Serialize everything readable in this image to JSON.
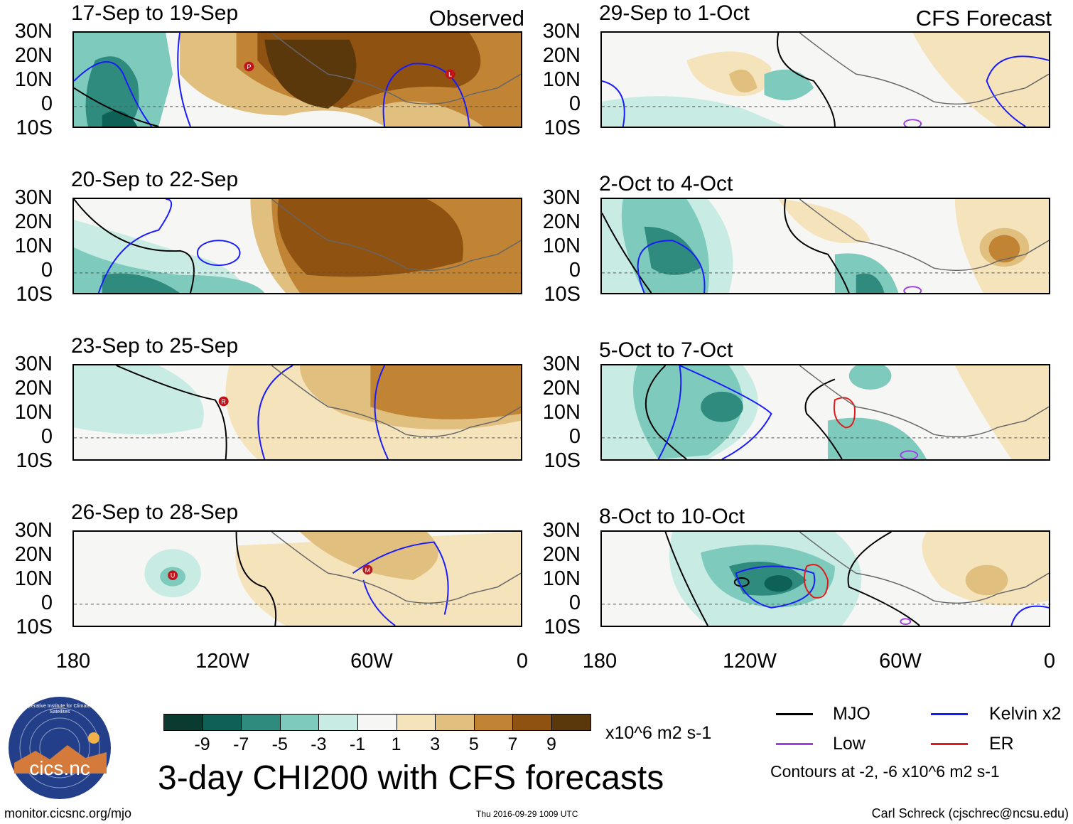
{
  "figure_title": "3-day CHI200 with CFS forecasts",
  "units_label": "x10^6 m2 s-1",
  "source_url": "monitor.cicsnc.org/mjo",
  "timestamp": "Thu 2016-09-29 1009 UTC",
  "author": "Carl Schreck (cjschrec@ncsu.edu)",
  "logo": {
    "ring_text": "Cooperative Institute for Climate and Satellites",
    "name": "cics.nc"
  },
  "observed_label": "Observed",
  "forecast_label": "CFS Forecast",
  "lat_labels": [
    "30N",
    "20N",
    "10N",
    "0",
    "10S"
  ],
  "lon_labels": [
    "180",
    "120W",
    "60W",
    "0"
  ],
  "panels": {
    "left": [
      {
        "title": "17-Sep to 19-Sep",
        "storms": [
          "P",
          "L"
        ]
      },
      {
        "title": "20-Sep to 22-Sep",
        "storms": []
      },
      {
        "title": "23-Sep to 25-Sep",
        "storms": [
          "R"
        ]
      },
      {
        "title": "26-Sep to 28-Sep",
        "storms": [
          "U",
          "M"
        ]
      }
    ],
    "right": [
      {
        "title": "29-Sep to 1-Oct",
        "storms": []
      },
      {
        "title": "2-Oct to 4-Oct",
        "storms": []
      },
      {
        "title": "5-Oct to 7-Oct",
        "storms": []
      },
      {
        "title": "8-Oct to 10-Oct",
        "storms": []
      }
    ]
  },
  "colorbar": {
    "labels": [
      "-9",
      "-7",
      "-5",
      "-3",
      "-1",
      "1",
      "3",
      "5",
      "7",
      "9"
    ],
    "colors": [
      "#0b3b30",
      "#0e6157",
      "#2f8b7e",
      "#7ecbbd",
      "#c8ebe3",
      "#f6f6f4",
      "#f5e3bc",
      "#e0bf7f",
      "#c08434",
      "#8f5211",
      "#5b370c"
    ]
  },
  "legend": {
    "items": [
      {
        "label": "MJO",
        "color": "#000000"
      },
      {
        "label": "Kelvin x2",
        "color": "#1a1aff"
      },
      {
        "label": "Low",
        "color": "#a040e0"
      },
      {
        "label": "ER",
        "color": "#e01a1a"
      }
    ],
    "note": "Contours at -2, -6 x10^6 m2 s-1"
  }
}
